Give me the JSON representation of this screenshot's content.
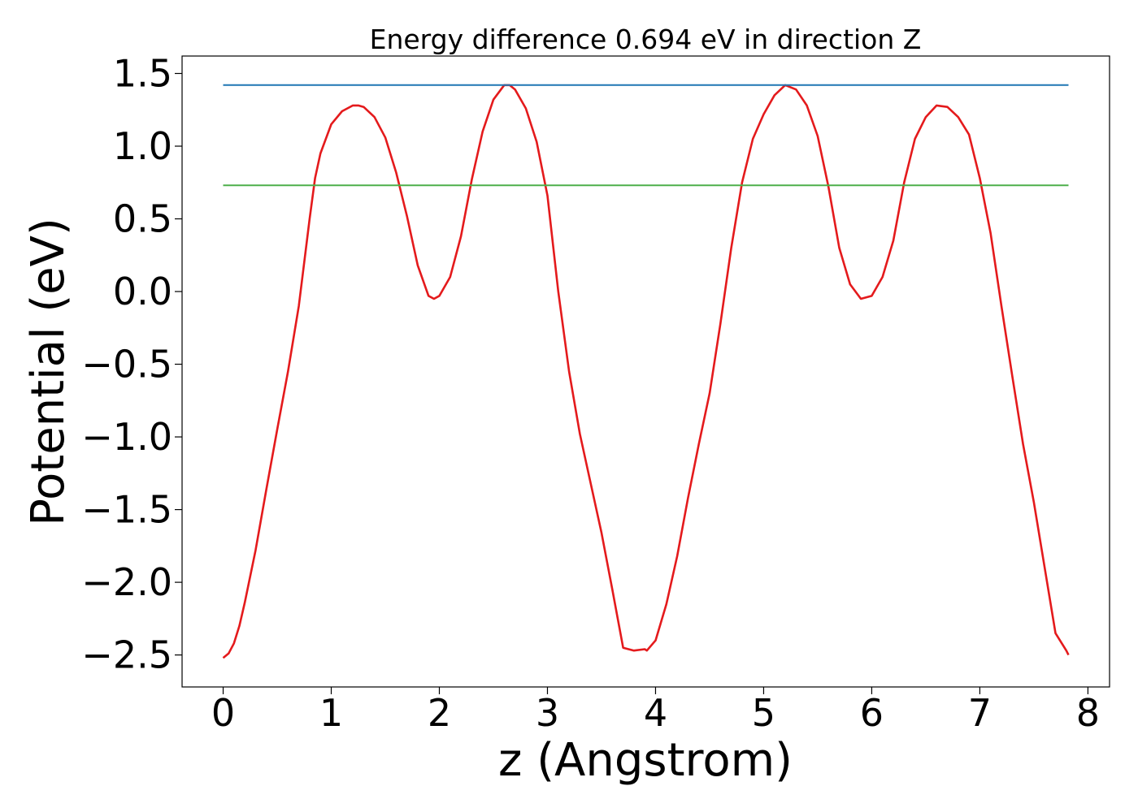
{
  "chart_data": {
    "type": "line",
    "title": "Energy difference 0.694 eV in direction Z",
    "xlabel": "z (Angstrom)",
    "ylabel": "Potential (eV)",
    "xlim": [
      -0.38,
      8.2
    ],
    "ylim": [
      -2.72,
      1.62
    ],
    "xticks": [
      0,
      1,
      2,
      3,
      4,
      5,
      6,
      7,
      8
    ],
    "xtick_labels": [
      "0",
      "1",
      "2",
      "3",
      "4",
      "5",
      "6",
      "7",
      "8"
    ],
    "yticks": [
      1.5,
      1.0,
      0.5,
      0.0,
      -0.5,
      -1.0,
      -1.5,
      -2.0,
      -2.5
    ],
    "ytick_labels": [
      "1.5",
      "1.0",
      "0.5",
      "0.0",
      "−0.5",
      "−1.0",
      "−1.5",
      "−2.0",
      "−2.5"
    ],
    "grid": false,
    "legend": "none",
    "series": [
      {
        "color": "#e41a1c",
        "x": [
          0.0,
          0.05,
          0.1,
          0.15,
          0.2,
          0.3,
          0.4,
          0.5,
          0.6,
          0.7,
          0.8,
          0.85,
          0.9,
          1.0,
          1.1,
          1.2,
          1.25,
          1.3,
          1.4,
          1.5,
          1.6,
          1.7,
          1.8,
          1.9,
          1.95,
          2.0,
          2.1,
          2.2,
          2.3,
          2.4,
          2.5,
          2.6,
          2.65,
          2.7,
          2.8,
          2.9,
          3.0,
          3.1,
          3.2,
          3.3,
          3.4,
          3.5,
          3.6,
          3.7,
          3.8,
          3.9,
          3.92,
          4.0,
          4.1,
          4.2,
          4.3,
          4.4,
          4.5,
          4.6,
          4.7,
          4.8,
          4.9,
          5.0,
          5.1,
          5.2,
          5.3,
          5.4,
          5.5,
          5.6,
          5.7,
          5.8,
          5.9,
          6.0,
          6.1,
          6.2,
          6.3,
          6.4,
          6.5,
          6.6,
          6.7,
          6.8,
          6.9,
          7.0,
          7.1,
          7.2,
          7.3,
          7.4,
          7.5,
          7.6,
          7.7,
          7.8,
          7.82
        ],
        "y": [
          -2.52,
          -2.49,
          -2.42,
          -2.3,
          -2.14,
          -1.78,
          -1.36,
          -0.95,
          -0.55,
          -0.1,
          0.5,
          0.78,
          0.95,
          1.15,
          1.24,
          1.28,
          1.28,
          1.27,
          1.2,
          1.06,
          0.82,
          0.52,
          0.18,
          -0.03,
          -0.05,
          -0.03,
          0.1,
          0.38,
          0.77,
          1.1,
          1.32,
          1.42,
          1.42,
          1.39,
          1.26,
          1.03,
          0.66,
          0.0,
          -0.55,
          -0.98,
          -1.32,
          -1.66,
          -2.05,
          -2.45,
          -2.47,
          -2.46,
          -2.47,
          -2.4,
          -2.15,
          -1.82,
          -1.42,
          -1.05,
          -0.7,
          -0.22,
          0.3,
          0.75,
          1.05,
          1.22,
          1.35,
          1.42,
          1.39,
          1.28,
          1.07,
          0.72,
          0.3,
          0.05,
          -0.05,
          -0.03,
          0.1,
          0.35,
          0.75,
          1.05,
          1.2,
          1.28,
          1.27,
          1.2,
          1.08,
          0.78,
          0.4,
          -0.1,
          -0.58,
          -1.05,
          -1.45,
          -1.9,
          -2.35,
          -2.47,
          -2.5
        ]
      },
      {
        "color": "#1f77b4",
        "x": [
          0.0,
          7.82
        ],
        "y": [
          1.42,
          1.42
        ]
      },
      {
        "color": "#4daf4a",
        "x": [
          0.0,
          7.82
        ],
        "y": [
          0.73,
          0.73
        ]
      }
    ]
  }
}
